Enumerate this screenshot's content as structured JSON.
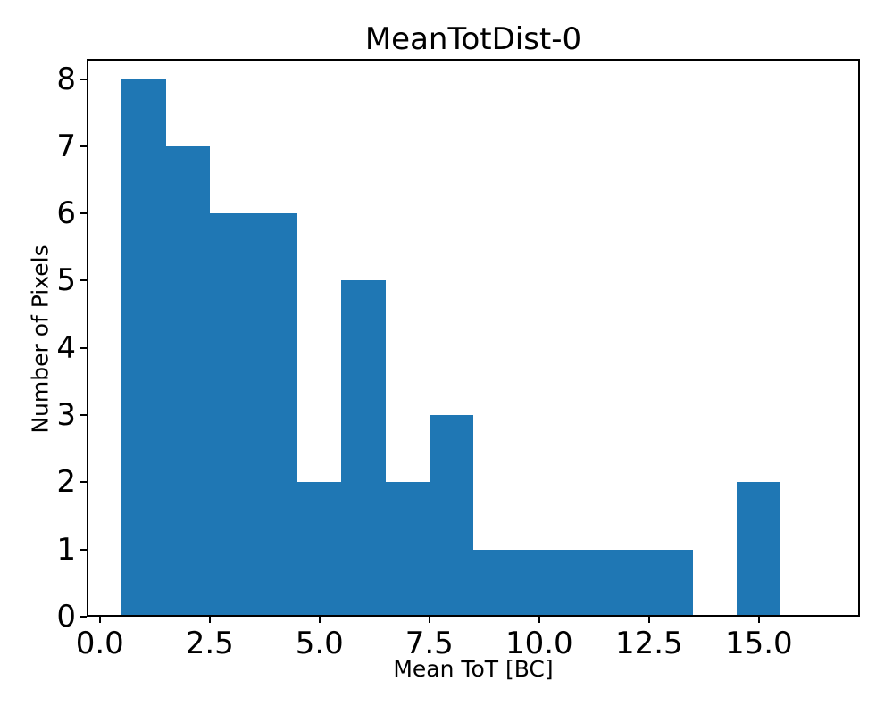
{
  "chart_data": {
    "type": "bar",
    "subtype": "histogram",
    "title": "MeanTotDist-0",
    "xlabel": "Mean ToT [BC]",
    "ylabel": "Number of Pixels",
    "bar_color": "#1f77b4",
    "background_color": "#ffffff",
    "spine_color": "#000000",
    "bin_edges": [
      0.5,
      1.5,
      2.5,
      3.5,
      4.5,
      5.5,
      6.5,
      7.5,
      8.5,
      9.5,
      10.5,
      11.5,
      12.5,
      13.5,
      14.5,
      15.5,
      16.5
    ],
    "counts": [
      8,
      7,
      6,
      6,
      2,
      5,
      2,
      3,
      1,
      1,
      1,
      1,
      1,
      0,
      2,
      0
    ],
    "xlim": [
      -0.3,
      17.3
    ],
    "ylim": [
      0,
      8.3
    ],
    "grid": "off",
    "legend": "none",
    "xticks": {
      "values": [
        0,
        2.5,
        5,
        7.5,
        10,
        12.5,
        15
      ],
      "labels": [
        "0.0",
        "2.5",
        "5.0",
        "7.5",
        "10.0",
        "12.5",
        "15.0"
      ]
    },
    "yticks": {
      "values": [
        0,
        1,
        2,
        3,
        4,
        5,
        6,
        7,
        8
      ],
      "labels": [
        "0",
        "1",
        "2",
        "3",
        "4",
        "5",
        "6",
        "7",
        "8"
      ]
    }
  }
}
